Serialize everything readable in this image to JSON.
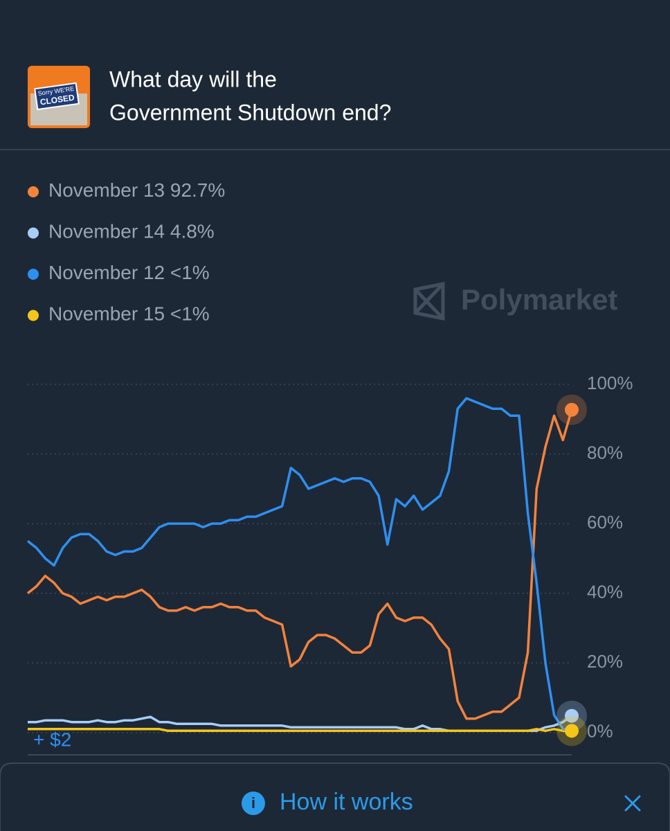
{
  "header": {
    "title_lines": [
      "What day will the",
      "Government Shutdown end?"
    ],
    "image_text": [
      "Sorry WE'RE",
      "CLOSED"
    ]
  },
  "watermark": "Polymarket",
  "overlay_label": "+ $2",
  "footer": {
    "button": "How it works"
  },
  "chart_data": {
    "type": "line",
    "series": [
      {
        "name": "November 13",
        "legend_label": "92.7%",
        "color": "#f5833b",
        "endpoint": true,
        "values": [
          40,
          42,
          45,
          43,
          40,
          39,
          37,
          38,
          39,
          38,
          39,
          39,
          40,
          41,
          39,
          36,
          35,
          35,
          36,
          35,
          36,
          36,
          37,
          36,
          36,
          35,
          35,
          33,
          32,
          31,
          19,
          21,
          26,
          28,
          28,
          27,
          25,
          23,
          23,
          25,
          34,
          37,
          33,
          32,
          33,
          33,
          31,
          27,
          24,
          9,
          4,
          4,
          5,
          6,
          6,
          8,
          10,
          23,
          70,
          82,
          91,
          84,
          92.7
        ]
      },
      {
        "name": "November 14",
        "legend_label": "4.8%",
        "color": "#a8cdf7",
        "endpoint": true,
        "values": [
          3,
          3,
          3.5,
          3.5,
          3.5,
          3,
          3,
          3,
          3.5,
          3,
          3,
          3.5,
          3.5,
          4,
          4.5,
          3,
          3,
          2.5,
          2.5,
          2.5,
          2.5,
          2.5,
          2,
          2,
          2,
          2,
          2,
          2,
          2,
          2,
          1.5,
          1.5,
          1.5,
          1.5,
          1.5,
          1.5,
          1.5,
          1.5,
          1.5,
          1.5,
          1.5,
          1.5,
          1.5,
          1,
          1,
          2,
          1,
          1,
          0.5,
          0.5,
          0.5,
          0.5,
          0.5,
          0.5,
          0.5,
          0.5,
          0.5,
          0.5,
          0.5,
          1.5,
          2,
          3,
          4.8
        ]
      },
      {
        "name": "November 12",
        "legend_label": "<1%",
        "color": "#2f8ff0",
        "endpoint": false,
        "values": [
          55,
          53,
          50,
          48,
          53,
          56,
          57,
          57,
          55,
          52,
          51,
          52,
          52,
          53,
          56,
          59,
          60,
          60,
          60,
          60,
          59,
          60,
          60,
          61,
          61,
          62,
          62,
          63,
          64,
          65,
          76,
          74,
          70,
          71,
          72,
          73,
          72,
          73,
          73,
          72,
          68,
          54,
          67,
          65,
          68,
          64,
          66,
          68,
          75,
          93,
          96,
          95,
          94,
          93,
          93,
          91,
          91,
          63,
          43,
          20,
          5,
          1,
          0.5
        ]
      },
      {
        "name": "November 15",
        "legend_label": "<1%",
        "color": "#f5c518",
        "endpoint": true,
        "values": [
          1,
          1,
          1,
          1,
          1,
          1,
          1,
          1,
          1,
          1,
          1,
          1,
          1,
          1,
          1,
          1,
          0.5,
          0.5,
          0.5,
          0.5,
          0.5,
          0.5,
          0.5,
          0.5,
          0.5,
          0.5,
          0.5,
          0.5,
          0.5,
          0.5,
          0.5,
          0.5,
          0.5,
          0.5,
          0.5,
          0.5,
          0.5,
          0.5,
          0.5,
          0.5,
          0.5,
          0.5,
          0.5,
          0.5,
          0.5,
          0.5,
          0.5,
          0.5,
          0.5,
          0.5,
          0.5,
          0.5,
          0.5,
          0.5,
          0.5,
          0.5,
          0.5,
          0.5,
          1,
          0.5,
          1,
          0.5,
          0.5
        ]
      }
    ],
    "ylim": [
      -6,
      100
    ],
    "yticks": [
      {
        "value": 0,
        "label": "0%"
      },
      {
        "value": 20,
        "label": "20%"
      },
      {
        "value": 40,
        "label": "40%"
      },
      {
        "value": 60,
        "label": "60%"
      },
      {
        "value": 80,
        "label": "80%"
      },
      {
        "value": 100,
        "label": "100%"
      }
    ],
    "grid": true
  }
}
